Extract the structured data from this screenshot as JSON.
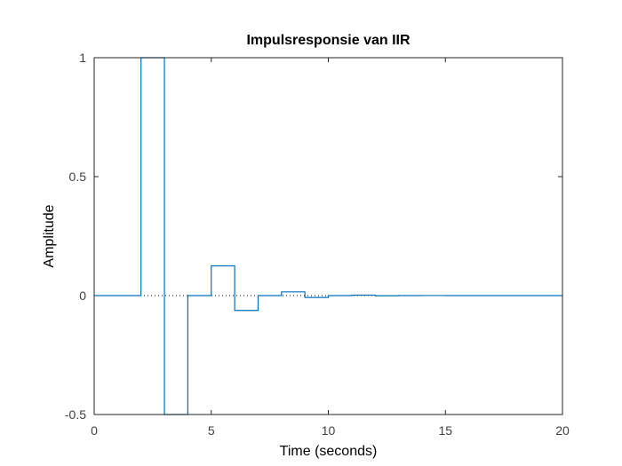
{
  "chart_data": {
    "type": "line",
    "step": true,
    "title": "Impulsresponsie van IIR",
    "xlabel": "Time (seconds)",
    "ylabel": "Amplitude",
    "xlim": [
      0,
      20
    ],
    "ylim": [
      -0.5,
      1
    ],
    "xticks": [
      0,
      5,
      10,
      15,
      20
    ],
    "xtick_labels": [
      "0",
      "5",
      "10",
      "15",
      "20"
    ],
    "yticks": [
      -0.5,
      0,
      0.5,
      1
    ],
    "ytick_labels": [
      "-0.5",
      "0",
      "0.5",
      "1"
    ],
    "grid": false,
    "box": true,
    "zero_line": "dotted",
    "series": [
      {
        "color": "#0072bd",
        "x": [
          0,
          1,
          2,
          3,
          4,
          5,
          6,
          7,
          8,
          9,
          10,
          11,
          12,
          13,
          14,
          15,
          16,
          17,
          18,
          19
        ],
        "values": [
          0,
          0,
          1,
          -0.5,
          0,
          0.125,
          -0.0625,
          0,
          0.0156,
          -0.0078,
          0,
          0.002,
          -0.001,
          0,
          0.0002,
          -0.0001,
          0,
          0,
          0,
          0
        ]
      }
    ]
  }
}
